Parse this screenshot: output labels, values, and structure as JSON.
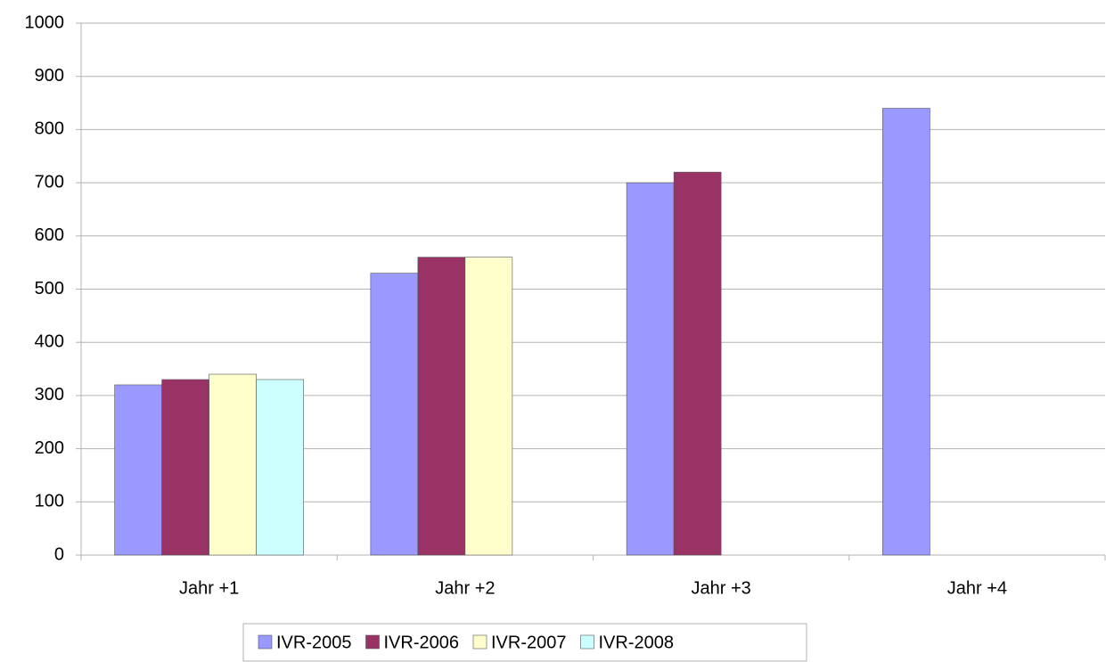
{
  "chart_data": {
    "type": "bar",
    "categories": [
      "Jahr +1",
      "Jahr +2",
      "Jahr +3",
      "Jahr +4"
    ],
    "series": [
      {
        "name": "IVR-2005",
        "color": "#9999ff",
        "values": [
          320,
          530,
          700,
          840
        ]
      },
      {
        "name": "IVR-2006",
        "color": "#993366",
        "values": [
          330,
          560,
          720,
          null
        ]
      },
      {
        "name": "IVR-2007",
        "color": "#ffffcc",
        "values": [
          340,
          560,
          null,
          null
        ]
      },
      {
        "name": "IVR-2008",
        "color": "#ccffff",
        "values": [
          330,
          null,
          null,
          null
        ]
      }
    ],
    "ylim": [
      0,
      1000
    ],
    "yticks": [
      0,
      100,
      200,
      300,
      400,
      500,
      600,
      700,
      800,
      900,
      1000
    ],
    "grid": true,
    "legend": "bottom"
  }
}
